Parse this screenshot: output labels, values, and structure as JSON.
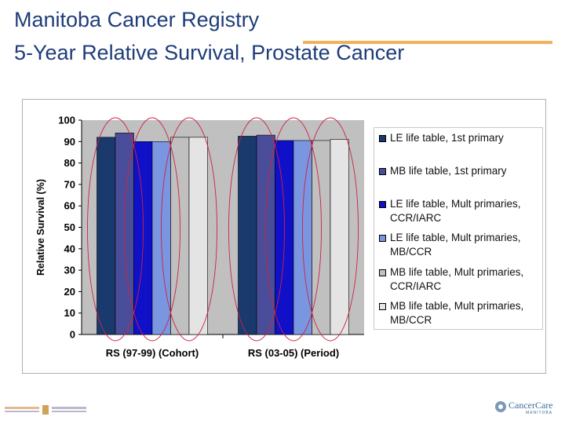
{
  "header": {
    "title_line1": "Manitoba Cancer Registry",
    "title_line2": "5-Year Relative Survival, Prostate Cancer",
    "accent_color": "#f2b25c",
    "title_color": "#1f3d7a"
  },
  "chart_data": {
    "type": "bar",
    "title": "",
    "xlabel": "",
    "ylabel": "Relative Survival (%)",
    "ylim": [
      0,
      100
    ],
    "yticks": [
      0,
      10,
      20,
      30,
      40,
      50,
      60,
      70,
      80,
      90,
      100
    ],
    "categories": [
      "RS (97-99) (Cohort)",
      "RS (03-05) (Period)"
    ],
    "series": [
      {
        "name": "LE life table, 1st primary",
        "values": [
          92,
          92.5
        ],
        "color": "#1a3a6e"
      },
      {
        "name": "MB life table, 1st primary",
        "values": [
          94,
          93
        ],
        "color": "#4a4e9a"
      },
      {
        "name": "LE life table, Mult primaries, CCR/IARC",
        "values": [
          90,
          90.5
        ],
        "color": "#1010c8"
      },
      {
        "name": "LE life table, Mult primaries, MB/CCR",
        "values": [
          90,
          90.5
        ],
        "color": "#7a96e0"
      },
      {
        "name": "MB life table, Mult primaries, CCR/IARC",
        "values": [
          92,
          90.5
        ],
        "color": "#c0c0c0"
      },
      {
        "name": "MB life table, Mult primaries, MB/CCR",
        "values": [
          92,
          91
        ],
        "color": "#e4e4e4"
      }
    ],
    "grid": false,
    "legend_position": "right",
    "plot_background": "#c0c0c0",
    "annotations": "red ellipses circling bar pairs"
  },
  "footer": {
    "right_logo": "CancerCare",
    "right_logo_sub": "MANITOBA"
  }
}
